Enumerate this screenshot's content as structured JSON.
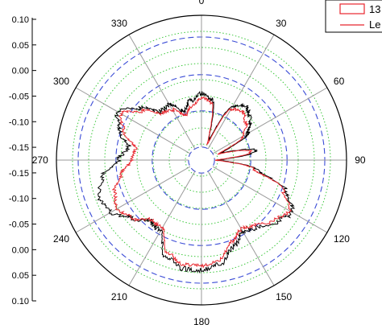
{
  "chart_data": {
    "type": "polar",
    "title": "",
    "angular_ticks": [
      "0",
      "30",
      "60",
      "90",
      "120",
      "150",
      "180",
      "210",
      "240",
      "270",
      "300",
      "330"
    ],
    "radial_scale_labels": [
      "0.10",
      "0.05",
      "0.00",
      "-0.05",
      "-0.10",
      "-0.15",
      "-0.15",
      "-0.10",
      "-0.05",
      "0.00",
      "0.05",
      "0.10"
    ],
    "rings": {
      "dashed_blue_count": 4,
      "dotted_green_count": 8,
      "colors": {
        "dashed": "#3a4bd6",
        "dotted": "#3cc83c",
        "spokes": "#9a9a9a",
        "frame": "#000000"
      }
    },
    "legend": {
      "placement": "top-right",
      "entries": [
        {
          "label": "13",
          "color": "#e8262d",
          "style": "box"
        },
        {
          "label": "Le",
          "color": "#e8262d",
          "style": "line"
        }
      ]
    },
    "series": [
      {
        "color": "#000000",
        "angles_deg": [
          0,
          10,
          20,
          30,
          40,
          50,
          60,
          70,
          80,
          90,
          100,
          110,
          120,
          130,
          140,
          150,
          160,
          170,
          180,
          190,
          200,
          210,
          220,
          230,
          240,
          250,
          260,
          270,
          280,
          290,
          300,
          310,
          320,
          330,
          340,
          350
        ],
        "radius_fraction": [
          0.46,
          0.42,
          0.15,
          0.43,
          0.48,
          0.44,
          0.37,
          0.15,
          0.38,
          0.12,
          0.39,
          0.62,
          0.72,
          0.67,
          0.6,
          0.57,
          0.64,
          0.73,
          0.76,
          0.76,
          0.71,
          0.57,
          0.55,
          0.62,
          0.72,
          0.75,
          0.7,
          0.57,
          0.51,
          0.6,
          0.67,
          0.56,
          0.44,
          0.44,
          0.36,
          0.42
        ]
      },
      {
        "color": "#e8262d",
        "angles_deg": [
          0,
          10,
          20,
          30,
          40,
          50,
          60,
          70,
          80,
          90,
          100,
          110,
          120,
          130,
          140,
          150,
          160,
          170,
          180,
          190,
          200,
          210,
          220,
          230,
          240,
          250,
          260,
          270,
          280,
          290,
          300,
          310,
          320,
          330,
          340,
          350
        ],
        "radius_fraction": [
          0.43,
          0.4,
          0.12,
          0.41,
          0.44,
          0.4,
          0.33,
          0.13,
          0.35,
          0.1,
          0.37,
          0.6,
          0.7,
          0.65,
          0.58,
          0.55,
          0.6,
          0.7,
          0.73,
          0.73,
          0.68,
          0.54,
          0.54,
          0.62,
          0.67,
          0.64,
          0.56,
          0.48,
          0.46,
          0.57,
          0.64,
          0.53,
          0.42,
          0.4,
          0.33,
          0.38
        ]
      }
    ]
  }
}
